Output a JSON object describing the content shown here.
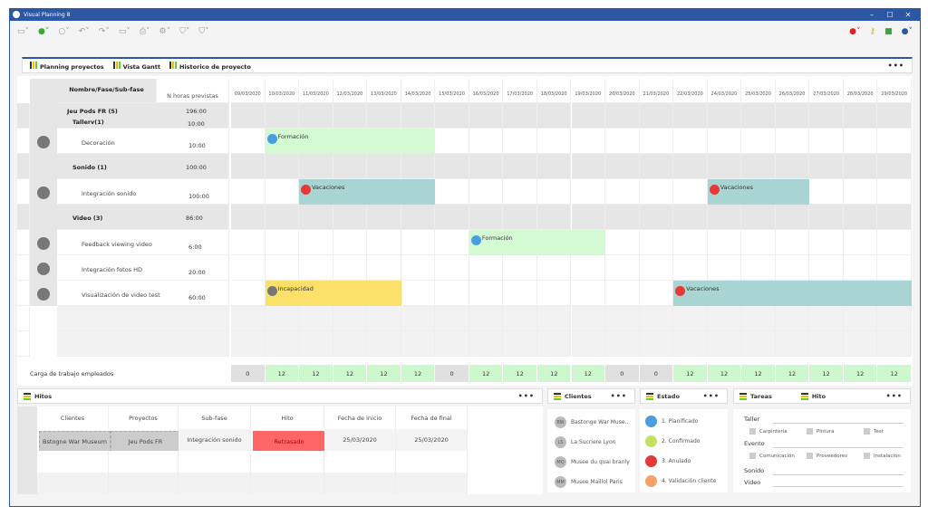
{
  "window": {
    "title": "Visual Planning 8",
    "minimize": "–",
    "maximize": "☐",
    "close": "✕"
  },
  "toolbar": {
    "icons": [
      "screen-icon",
      "add-icon",
      "circle-icon",
      "undo-icon",
      "redo-icon",
      "monitor-icon",
      "print-icon",
      "settings-icon",
      "filter-icon",
      "filter-icon"
    ],
    "lang_icon": "spain-flag-icon",
    "key_icon": "key-icon",
    "network_icon": "network-icon",
    "help_icon": "help-icon"
  },
  "tabs": [
    {
      "label": "Planning proyectos"
    },
    {
      "label": "Vista Gantt"
    },
    {
      "label": "Historico de proyecto"
    }
  ],
  "more": "•••",
  "grid": {
    "col_name": "Nombre/Fase/Sub-fase",
    "col_hours": "N horas previstas",
    "dates": [
      "09/03/2020",
      "10/03/2020",
      "11/03/2020",
      "12/03/2020",
      "13/03/2020",
      "14/03/2020",
      "15/03/2020",
      "16/03/2020",
      "17/03/2020",
      "18/03/2020",
      "19/03/2020",
      "20/03/2020",
      "21/03/2020",
      "22/03/2020",
      "24/03/2020",
      "25/03/2020",
      "26/03/2020",
      "27/03/2020",
      "28/03/2020",
      "29/03/2020"
    ],
    "rows": [
      {
        "name": "Jeu Pods FR (5)",
        "hours": "196:00",
        "name2": "Tallerv(1)",
        "hours2": "10:00",
        "type": "group"
      },
      {
        "name": "Decoración",
        "hours": "10:00",
        "type": "task"
      },
      {
        "name": "Sonido (1)",
        "hours": "100:00",
        "type": "group"
      },
      {
        "name": "Integración sonido",
        "hours": "100:00",
        "type": "task"
      },
      {
        "name": "Video (3)",
        "hours": "86:00",
        "type": "group"
      },
      {
        "name": "Feedback viewing video",
        "hours": "6:00",
        "type": "task"
      },
      {
        "name": "Integración fotos HD",
        "hours": "20:00",
        "type": "task"
      },
      {
        "name": "Visualización de video test",
        "hours": "60:00",
        "type": "task"
      }
    ],
    "bars": [
      {
        "row": 1,
        "start": 1,
        "end": 5,
        "label": "Formación",
        "color": "#d4fad4",
        "dot": "#4a9ee0"
      },
      {
        "row": 3,
        "start": 2,
        "end": 5,
        "label": "Vacaciones",
        "color": "#a9d4d4",
        "dot": "#e53935"
      },
      {
        "row": 3,
        "start": 14,
        "end": 16,
        "label": "Vacaciones",
        "color": "#a9d4d4",
        "dot": "#e53935"
      },
      {
        "row": 5,
        "start": 7,
        "end": 10,
        "label": "Formación",
        "color": "#d4fad4",
        "dot": "#4a9ee0"
      },
      {
        "row": 7,
        "start": 1,
        "end": 4,
        "label": "Incapacidad",
        "color": "#fbe06a",
        "dot": "#777"
      },
      {
        "row": 7,
        "start": 13,
        "end": 19,
        "label": "Vacaciones",
        "color": "#a9d4d4",
        "dot": "#e53935"
      }
    ],
    "load_label": "Carga de trabajo empleados",
    "load": [
      "0",
      "12",
      "12",
      "12",
      "12",
      "12",
      "0",
      "12",
      "12",
      "12",
      "12",
      "0",
      "0",
      "12",
      "12",
      "12",
      "12",
      "12",
      "12",
      "12"
    ]
  },
  "hitos": {
    "title": "Hitos",
    "headers": [
      "Clientes",
      "Proyectos",
      "Sub-fase",
      "Hito",
      "Fecha de inicio",
      "Fecha de final"
    ],
    "row": [
      "Bstogne War Museum",
      "Jeu Pods FR",
      "Integración sonido",
      "Retrasado",
      "25/03/2020",
      "25/03/2020"
    ]
  },
  "clientes": {
    "title": "Clientes",
    "items": [
      {
        "initials": "BW",
        "name": "Bastonge War Muse.."
      },
      {
        "initials": "LS",
        "name": "La Sucriere Lyon"
      },
      {
        "initials": "MQ",
        "name": "Musee du quai branly"
      },
      {
        "initials": "MM",
        "name": "Musee Maillol Paris"
      }
    ]
  },
  "estado": {
    "title": "Estado",
    "items": [
      {
        "name": "1. Planificado",
        "color": "#4a9ee0"
      },
      {
        "name": "2. Confirmado",
        "color": "#c5e063"
      },
      {
        "name": "3. Anulado",
        "color": "#e53935"
      },
      {
        "name": "4. Validación cliente",
        "color": "#f4a26a"
      }
    ]
  },
  "tareas": {
    "title": "Tareas",
    "title2": "Hito",
    "groups": [
      {
        "name": "Taller",
        "items": [
          "Carpintería",
          "Pintura",
          "Test"
        ]
      },
      {
        "name": "Evento",
        "items": [
          "Comunicación",
          "Proveedores",
          "Instalación"
        ]
      },
      {
        "name": "Sonido",
        "items": []
      },
      {
        "name": "Video",
        "items": []
      }
    ]
  }
}
